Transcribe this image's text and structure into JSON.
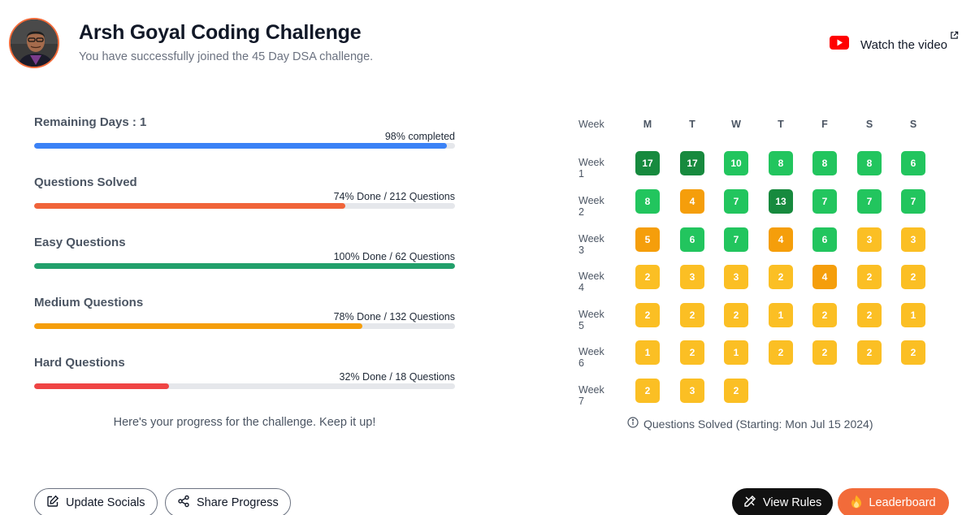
{
  "header": {
    "title": "Arsh Goyal Coding Challenge",
    "subtitle": "You have successfully joined the 45 Day DSA challenge.",
    "watch_label": "Watch the video"
  },
  "progress": [
    {
      "label": "Remaining Days : 1",
      "status": "98% completed",
      "percent": 98,
      "color": "#3b82f6"
    },
    {
      "label": "Questions Solved",
      "status": "74% Done / 212 Questions",
      "percent": 74,
      "color": "#f0643a"
    },
    {
      "label": "Easy Questions",
      "status": "100% Done / 62 Questions",
      "percent": 100,
      "color": "#22a06b"
    },
    {
      "label": "Medium Questions",
      "status": "78% Done / 132 Questions",
      "percent": 78,
      "color": "#f59e0b"
    },
    {
      "label": "Hard Questions",
      "status": "32% Done / 18 Questions",
      "percent": 32,
      "color": "#ef4444"
    }
  ],
  "encouragement": "Here's your progress for the challenge. Keep it up!",
  "grid": {
    "week_header": "Week",
    "days": [
      "M",
      "T",
      "W",
      "T",
      "F",
      "S",
      "S"
    ],
    "weeks": [
      {
        "label": "Week 1",
        "values": [
          17,
          17,
          10,
          8,
          8,
          8,
          6
        ]
      },
      {
        "label": "Week 2",
        "values": [
          8,
          4,
          7,
          13,
          7,
          7,
          7
        ]
      },
      {
        "label": "Week 3",
        "values": [
          5,
          6,
          7,
          4,
          6,
          3,
          3
        ]
      },
      {
        "label": "Week 4",
        "values": [
          2,
          3,
          3,
          2,
          4,
          2,
          2
        ]
      },
      {
        "label": "Week 5",
        "values": [
          2,
          2,
          2,
          1,
          2,
          2,
          1
        ]
      },
      {
        "label": "Week 6",
        "values": [
          1,
          2,
          1,
          2,
          2,
          2,
          2
        ]
      },
      {
        "label": "Week 7",
        "values": [
          2,
          3,
          2
        ]
      }
    ],
    "colors": {
      "dark_green": "#178a3e",
      "green": "#22c55e",
      "orange": "#f59e0b",
      "yellow": "#fbbf24"
    },
    "caption": "Questions Solved (Starting: Mon Jul 15 2024)"
  },
  "buttons": {
    "update_socials": "Update Socials",
    "share_progress": "Share Progress",
    "view_rules": "View Rules",
    "leaderboard": "Leaderboard"
  }
}
